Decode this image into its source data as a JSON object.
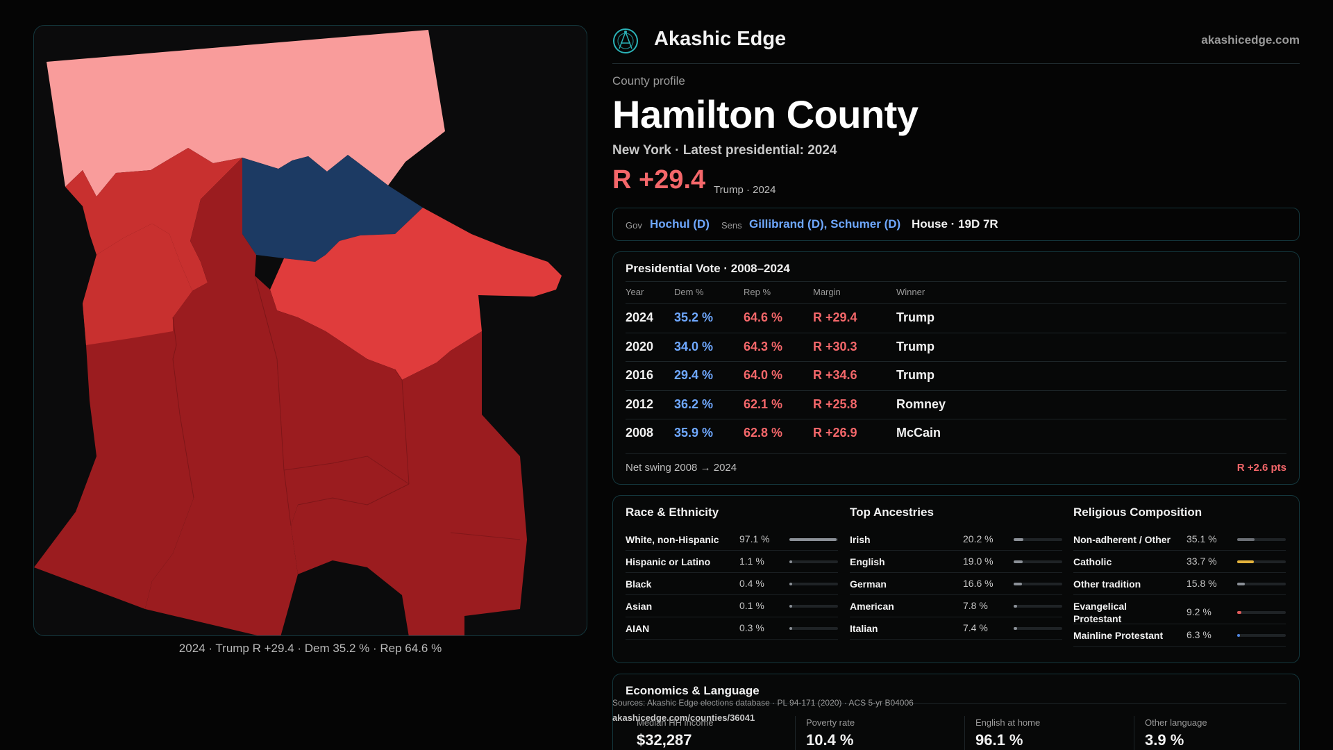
{
  "colors": {
    "rep_dark": "#9b1c1f",
    "rep_mid": "#c8302f",
    "rep_bright": "#e03c3c",
    "rep_light": "#f99c9b",
    "dem_dark": "#1c3a63",
    "dem_text": "#6fa8ff",
    "rep_text": "#f4676a",
    "accent_border": "#14373d"
  },
  "map": {
    "caption": "2024 · Trump R +29.4 · Dem 35.2 % · Rep 64.6 %"
  },
  "header": {
    "brand": "Akashic Edge",
    "site": "akashicedge.com",
    "logo_icon": "globe-network-icon"
  },
  "profile": {
    "eyebrow": "County profile",
    "county": "Hamilton County",
    "subtitle": "New York · Latest presidential: 2024",
    "margin": "R +29.4",
    "margin_note": "Trump · 2024"
  },
  "officials": {
    "gov_label": "Gov",
    "gov": "Hochul (D)",
    "sens_label": "Sens",
    "sens": "Gillibrand (D), Schumer (D)",
    "house": "House · 19D 7R"
  },
  "presidential": {
    "title": "Presidential Vote · 2008–2024",
    "headers": {
      "year": "Year",
      "dem": "Dem %",
      "rep": "Rep %",
      "margin": "Margin",
      "winner": "Winner"
    },
    "rows": [
      {
        "year": "2024",
        "dem": "35.2 %",
        "rep": "64.6 %",
        "margin": "R +29.4",
        "winner": "Trump"
      },
      {
        "year": "2020",
        "dem": "34.0 %",
        "rep": "64.3 %",
        "margin": "R +30.3",
        "winner": "Trump"
      },
      {
        "year": "2016",
        "dem": "29.4 %",
        "rep": "64.0 %",
        "margin": "R +34.6",
        "winner": "Trump"
      },
      {
        "year": "2012",
        "dem": "36.2 %",
        "rep": "62.1 %",
        "margin": "R +25.8",
        "winner": "Romney"
      },
      {
        "year": "2008",
        "dem": "35.9 %",
        "rep": "62.8 %",
        "margin": "R +26.9",
        "winner": "McCain"
      }
    ],
    "swing_label": "Net swing 2008 → 2024",
    "swing_value": "R +2.6 pts"
  },
  "race": {
    "title": "Race & Ethnicity",
    "rows": [
      {
        "name": "White, non-Hispanic",
        "value": "97.1 %",
        "pct": 97.1
      },
      {
        "name": "Hispanic or Latino",
        "value": "1.1 %",
        "pct": 1.1
      },
      {
        "name": "Black",
        "value": "0.4 %",
        "pct": 0.4
      },
      {
        "name": "Asian",
        "value": "0.1 %",
        "pct": 0.1
      },
      {
        "name": "AIAN",
        "value": "0.3 %",
        "pct": 0.3
      }
    ]
  },
  "ancestries": {
    "title": "Top Ancestries",
    "rows": [
      {
        "name": "Irish",
        "value": "20.2 %",
        "pct": 20.2
      },
      {
        "name": "English",
        "value": "19.0 %",
        "pct": 19.0
      },
      {
        "name": "German",
        "value": "16.6 %",
        "pct": 16.6
      },
      {
        "name": "American",
        "value": "7.8 %",
        "pct": 7.8
      },
      {
        "name": "Italian",
        "value": "7.4 %",
        "pct": 7.4
      }
    ]
  },
  "religion": {
    "title": "Religious Composition",
    "rows": [
      {
        "name": "Non-adherent / Other",
        "value": "35.1 %",
        "pct": 35.1,
        "color": "#6b6f75"
      },
      {
        "name": "Catholic",
        "value": "33.7 %",
        "pct": 33.7,
        "color": "#e3b23c"
      },
      {
        "name": "Other tradition",
        "value": "15.8 %",
        "pct": 15.8,
        "color": "#8a8f96"
      },
      {
        "name": "Evangelical Protestant",
        "value": "9.2 %",
        "pct": 9.2,
        "color": "#e05a5a"
      },
      {
        "name": "Mainline Protestant",
        "value": "6.3 %",
        "pct": 6.3,
        "color": "#4f86e0"
      }
    ]
  },
  "economics": {
    "title": "Economics & Language",
    "items": [
      {
        "label": "Median HH income",
        "value": "$32,287"
      },
      {
        "label": "Poverty rate",
        "value": "10.4 %"
      },
      {
        "label": "English at home",
        "value": "96.1 %"
      },
      {
        "label": "Other language",
        "value": "3.9 %"
      }
    ]
  },
  "footer": {
    "sources": "Sources: Akashic Edge elections database · PL 94-171 (2020) · ACS 5-yr B04006",
    "url": "akashicedge.com/counties/36041"
  }
}
